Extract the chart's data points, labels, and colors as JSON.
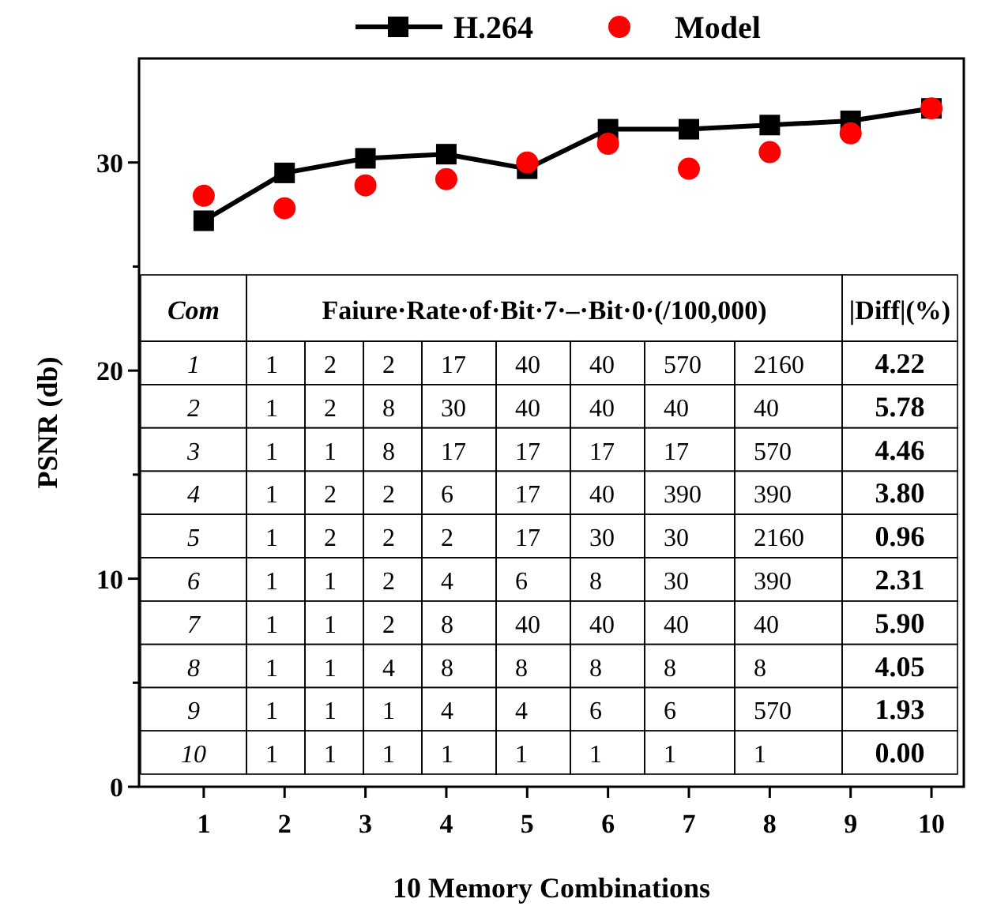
{
  "chart_data": {
    "type": "line",
    "xlabel": "10 Memory Combinations",
    "ylabel": "PSNR (db)",
    "x": [
      1,
      2,
      3,
      4,
      5,
      6,
      7,
      8,
      9,
      10
    ],
    "xlim": [
      0.2,
      10.4
    ],
    "xticks": [
      1,
      2,
      3,
      4,
      5,
      6,
      7,
      8,
      9,
      10
    ],
    "ylim": [
      0,
      35
    ],
    "yticks": [
      0,
      {
        "value": 5,
        "label": null
      },
      10,
      {
        "value": 15,
        "label": null
      },
      20,
      {
        "value": 25,
        "label": null
      },
      30
    ],
    "grid": false,
    "legend": "top",
    "line_style": "solid",
    "series": [
      {
        "name": "H.264",
        "marker": "square",
        "color": "#000000",
        "values": [
          27.2,
          29.5,
          30.2,
          30.4,
          29.7,
          31.6,
          31.6,
          31.8,
          32.0,
          32.6
        ]
      },
      {
        "name": "Model",
        "type": "scatter",
        "marker": "circle",
        "color": "#ff0000",
        "values": [
          28.4,
          27.8,
          28.9,
          29.2,
          30.0,
          30.9,
          29.7,
          30.5,
          31.4,
          32.6
        ]
      }
    ],
    "annotations": [
      "Com",
      "Faiure·Rate·of·Bit·7·–·Bit·0·(/100,000)",
      "|Diff|(%)",
      "1",
      "1",
      "2",
      "2",
      "17",
      "40",
      "40",
      "570",
      "2160",
      "4.22",
      "2",
      "1",
      "2",
      "8",
      "30",
      "40",
      "40",
      "40",
      "40",
      "5.78",
      "3",
      "1",
      "1",
      "8",
      "17",
      "17",
      "17",
      "17",
      "570",
      "4.46",
      "4",
      "1",
      "2",
      "2",
      "6",
      "17",
      "40",
      "390",
      "390",
      "3.80",
      "5",
      "1",
      "2",
      "2",
      "2",
      "17",
      "30",
      "30",
      "2160",
      "0.96",
      "6",
      "1",
      "1",
      "2",
      "4",
      "6",
      "8",
      "30",
      "390",
      "2.31",
      "7",
      "1",
      "1",
      "2",
      "8",
      "40",
      "40",
      "40",
      "40",
      "5.90",
      "8",
      "1",
      "1",
      "4",
      "8",
      "8",
      "8",
      "8",
      "8",
      "4.05",
      "9",
      "1",
      "1",
      "1",
      "4",
      "4",
      "6",
      "6",
      "570",
      "1.93",
      "10",
      "1",
      "1",
      "1",
      "1",
      "1",
      "1",
      "1",
      "1",
      "0.00"
    ]
  }
}
